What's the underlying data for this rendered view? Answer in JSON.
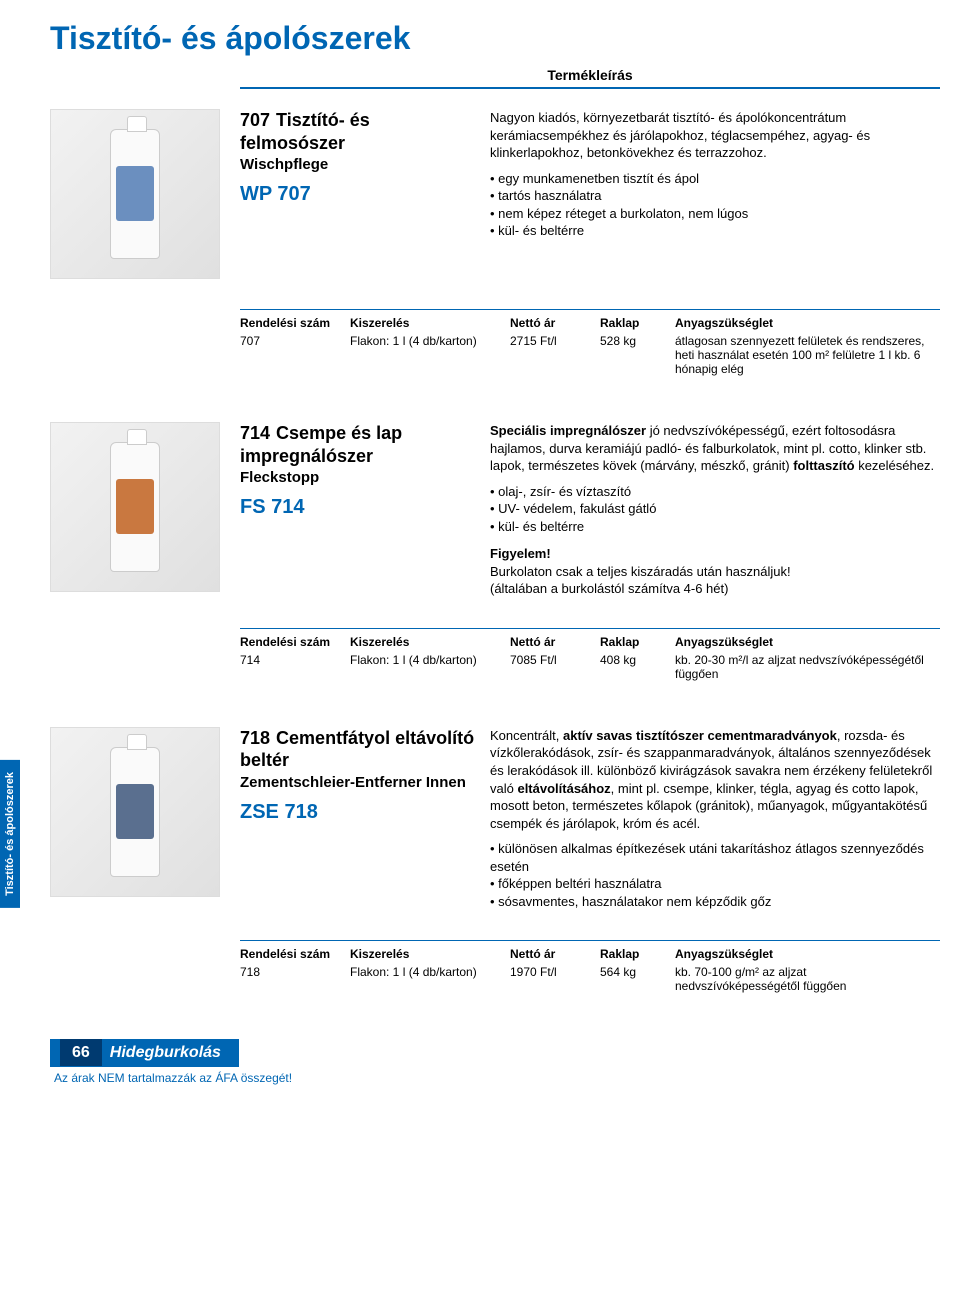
{
  "page_title": "Tisztító- és ápolószerek",
  "term_label": "Termékleírás",
  "side_tab": "Tisztító- és  ápolószerek",
  "table_headers": {
    "c1": "Rendelési szám",
    "c2": "Kiszerelés",
    "c3": "Nettó ár",
    "c4": "Raklap",
    "c5": "Anyagszükséglet"
  },
  "products": [
    {
      "num": "707",
      "name": "Tisztító- és felmosószer",
      "sub": "Wischpflege",
      "code": "WP 707",
      "label_color": "#6b8fbf",
      "desc_intro": "Nagyon kiadós, környezetbarát tisztító- és ápolókoncentrátum kerámiacsempékhez és járólapokhoz, téglacsempéhez, agyag- és klinkerlapokhoz, betonkövekhez és terrazzohoz.",
      "bullets": [
        "egy munkamenetben tisztít és ápol",
        "tartós használatra",
        "nem képez réteget a burkolaton, nem lúgos",
        "kül- és beltérre"
      ],
      "warning": null,
      "table": {
        "c1": "707",
        "c2": "Flakon: 1 l (4 db/karton)",
        "c3": "2715 Ft/l",
        "c4": "528 kg",
        "c5": "átlagosan szennyezett felületek és rendszeres, heti használat esetén 100 m² felületre 1 l kb. 6 hónapig elég"
      }
    },
    {
      "num": "714",
      "name": "Csempe és lap impregnálószer",
      "sub": "Fleckstopp",
      "code": "FS 714",
      "label_color": "#c97840",
      "desc_intro_html": "<span class='bold'>Speciális impregnálószer</span> jó nedvszívóképességű, ezért foltosodásra hajlamos, durva keramiájú padló- és falburkolatok, mint pl. cotto, klinker stb. lapok, természetes kövek (márvány, mészkő, gránit) <span class='bold'>folttaszító</span> kezeléséhez.",
      "bullets": [
        "olaj-, zsír- és víztaszító",
        "UV- védelem, fakulást gátló",
        "kül- és beltérre"
      ],
      "warning": {
        "title": "Figyelem!",
        "lines": [
          "Burkolaton csak a teljes kiszáradás után használjuk!",
          "(általában a burkolástól számítva 4-6 hét)"
        ]
      },
      "table": {
        "c1": "714",
        "c2": "Flakon: 1 l (4 db/karton)",
        "c3": "7085 Ft/l",
        "c4": "408 kg",
        "c5": "kb. 20-30 m²/l az aljzat nedvszívóképességétől függően"
      }
    },
    {
      "num": "718",
      "name": "Cementfátyol eltávolító beltér",
      "sub": "Zementschleier-Entferner Innen",
      "code": "ZSE 718",
      "label_color": "#5a6f8f",
      "desc_intro_html": "Koncentrált, <span class='bold'>aktív savas tisztítószer cementmaradványok</span>, rozsda- és vízkőlerakódások, zsír- és szappanmaradványok, általános szennyeződések és lerakódások ill. különböző kivirágzások savakra nem érzékeny felületekről való <span class='bold'>eltávolításához</span>, mint pl. csempe, klinker, tégla, agyag és cotto lapok, mosott beton, természetes kőlapok (gránitok), műanyagok, műgyantakötésű csempék és járólapok, króm és acél.",
      "bullets": [
        "különösen alkalmas építkezések utáni takarításhoz átlagos szennyeződés esetén",
        "főképpen beltéri használatra",
        "sósavmentes, használatakor nem képződik gőz"
      ],
      "warning": null,
      "table": {
        "c1": "718",
        "c2": "Flakon: 1 l (4 db/karton)",
        "c3": "1970 Ft/l",
        "c4": "564 kg",
        "c5": "kb. 70-100 g/m² az aljzat nedvszívóképességétől függően"
      }
    }
  ],
  "footer": {
    "page_num": "66",
    "section": "Hidegburkolás",
    "note": "Az árak NEM tartalmazzák az ÁFA összegét!"
  }
}
